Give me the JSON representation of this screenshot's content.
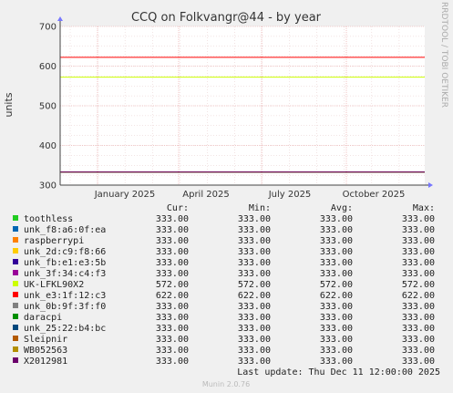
{
  "chart_data": {
    "type": "line",
    "title": "CCQ on Folkvangr@44 - by year",
    "ylabel": "units",
    "xlabel": "",
    "ylim": [
      300,
      700
    ],
    "yticks": [
      300,
      400,
      500,
      600,
      700
    ],
    "xticks": [
      "January 2025",
      "April 2025",
      "July 2025",
      "October 2025"
    ],
    "grid": true,
    "side_label": "RRDTOOL / TOBI OETIKER",
    "legend_headers": {
      "cur": "Cur:",
      "min": "Min:",
      "avg": "Avg:",
      "max": "Max:"
    },
    "series": [
      {
        "name": "toothless",
        "color": "#22cc22",
        "cur": "333.00",
        "min": "333.00",
        "avg": "333.00",
        "max": "333.00",
        "value": 333
      },
      {
        "name": "unk_f8:a6:0f:ea",
        "color": "#0066b3",
        "cur": "333.00",
        "min": "333.00",
        "avg": "333.00",
        "max": "333.00",
        "value": 333
      },
      {
        "name": "raspberrypi",
        "color": "#ff8000",
        "cur": "333.00",
        "min": "333.00",
        "avg": "333.00",
        "max": "333.00",
        "value": 333
      },
      {
        "name": "unk_2d:c9:f8:66",
        "color": "#ffcc00",
        "cur": "333.00",
        "min": "333.00",
        "avg": "333.00",
        "max": "333.00",
        "value": 333
      },
      {
        "name": "unk_fb:e1:e3:5b",
        "color": "#330099",
        "cur": "333.00",
        "min": "333.00",
        "avg": "333.00",
        "max": "333.00",
        "value": 333
      },
      {
        "name": "unk_3f:34:c4:f3",
        "color": "#990099",
        "cur": "333.00",
        "min": "333.00",
        "avg": "333.00",
        "max": "333.00",
        "value": 333
      },
      {
        "name": "UK-LFKL90X2",
        "color": "#ccff00",
        "cur": "572.00",
        "min": "572.00",
        "avg": "572.00",
        "max": "572.00",
        "value": 572
      },
      {
        "name": "unk_e3:1f:12:c3",
        "color": "#ff0000",
        "cur": "622.00",
        "min": "622.00",
        "avg": "622.00",
        "max": "622.00",
        "value": 622
      },
      {
        "name": "unk_0b:9f:3f:f0",
        "color": "#808080",
        "cur": "333.00",
        "min": "333.00",
        "avg": "333.00",
        "max": "333.00",
        "value": 333
      },
      {
        "name": "daracpi",
        "color": "#008f00",
        "cur": "333.00",
        "min": "333.00",
        "avg": "333.00",
        "max": "333.00",
        "value": 333
      },
      {
        "name": "unk_25:22:b4:bc",
        "color": "#00487d",
        "cur": "333.00",
        "min": "333.00",
        "avg": "333.00",
        "max": "333.00",
        "value": 333
      },
      {
        "name": "Sleipnir",
        "color": "#b35a00",
        "cur": "333.00",
        "min": "333.00",
        "avg": "333.00",
        "max": "333.00",
        "value": 333
      },
      {
        "name": "WB052563",
        "color": "#b38f00",
        "cur": "333.00",
        "min": "333.00",
        "avg": "333.00",
        "max": "333.00",
        "value": 333
      },
      {
        "name": "X2012981",
        "color": "#6b006b",
        "cur": "333.00",
        "min": "333.00",
        "avg": "333.00",
        "max": "333.00",
        "value": 333
      }
    ],
    "last_update": "Last update: Thu Dec 11 12:00:00 2025",
    "footer": "Munin 2.0.76"
  }
}
